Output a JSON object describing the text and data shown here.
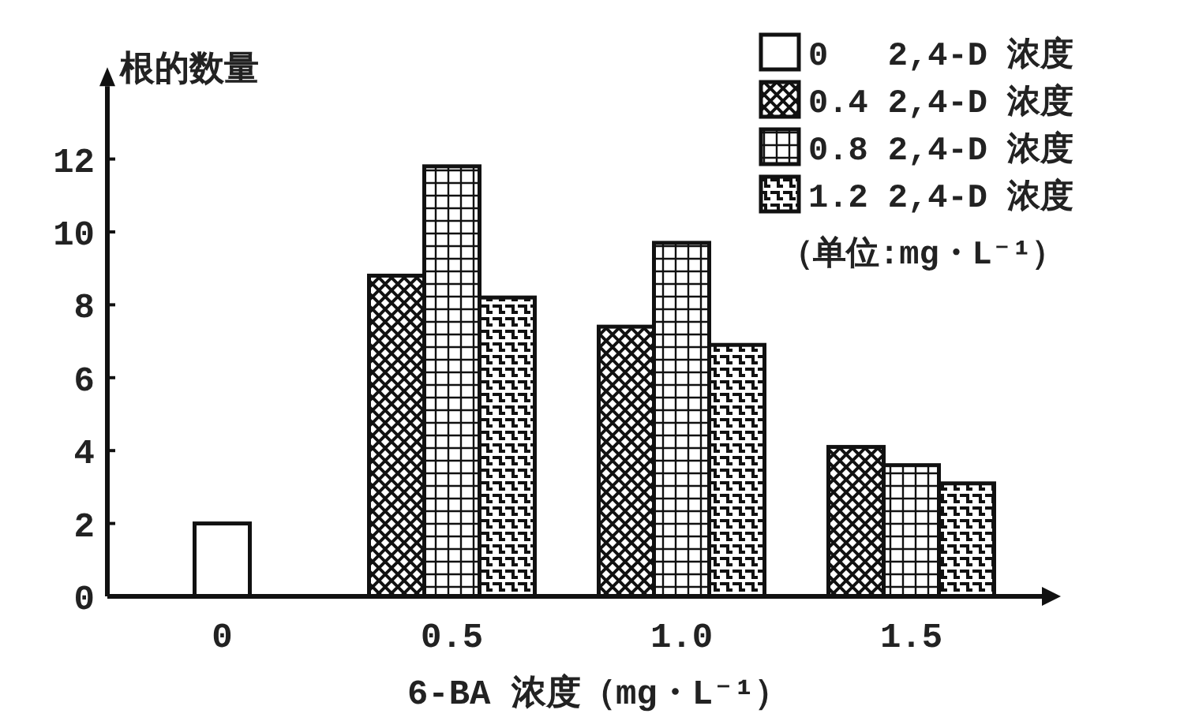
{
  "chart_data": {
    "type": "bar",
    "ylabel": "根的数量",
    "xlabel": "6-BA 浓度（mg・L⁻¹）",
    "categories": [
      "0",
      "0.5",
      "1.0",
      "1.5"
    ],
    "series": [
      {
        "name": "0   2,4-D 浓度",
        "color": "#111111",
        "values": [
          2,
          null,
          null,
          null
        ]
      },
      {
        "name": "0.4 2,4-D 浓度",
        "color": "#111111",
        "values": [
          null,
          8.8,
          7.4,
          4.1
        ]
      },
      {
        "name": "0.8 2,4-D 浓度",
        "color": "#111111",
        "values": [
          null,
          11.8,
          9.7,
          3.6
        ]
      },
      {
        "name": "1.2 2,4-D 浓度",
        "color": "#111111",
        "values": [
          null,
          8.2,
          6.9,
          3.1
        ]
      }
    ],
    "ylim": [
      0,
      14
    ],
    "yticks": [
      0,
      2,
      4,
      6,
      8,
      10,
      12
    ],
    "grid": false,
    "legend": "top right",
    "annotations": [
      "（单位:mg・L⁻¹）"
    ]
  }
}
